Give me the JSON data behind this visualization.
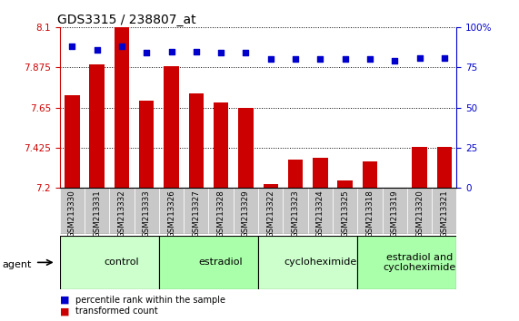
{
  "title": "GDS3315 / 238807_at",
  "samples": [
    "GSM213330",
    "GSM213331",
    "GSM213332",
    "GSM213333",
    "GSM213326",
    "GSM213327",
    "GSM213328",
    "GSM213329",
    "GSM213322",
    "GSM213323",
    "GSM213324",
    "GSM213325",
    "GSM213318",
    "GSM213319",
    "GSM213320",
    "GSM213321"
  ],
  "transformed_counts": [
    7.72,
    7.89,
    8.1,
    7.69,
    7.88,
    7.73,
    7.68,
    7.65,
    7.22,
    7.36,
    7.37,
    7.24,
    7.35,
    7.2,
    7.43,
    7.43
  ],
  "percentile_ranks": [
    88,
    86,
    88,
    84,
    85,
    85,
    84,
    84,
    80,
    80,
    80,
    80,
    80,
    79,
    81,
    81
  ],
  "groups": [
    {
      "label": "control",
      "start": 0,
      "end": 4,
      "color": "#ccffcc"
    },
    {
      "label": "estradiol",
      "start": 4,
      "end": 8,
      "color": "#aaffaa"
    },
    {
      "label": "cycloheximide",
      "start": 8,
      "end": 12,
      "color": "#ccffcc"
    },
    {
      "label": "estradiol and\ncycloheximide",
      "start": 12,
      "end": 16,
      "color": "#aaffaa"
    }
  ],
  "ylim_left": [
    7.2,
    8.1
  ],
  "ylim_right": [
    0,
    100
  ],
  "yticks_left": [
    7.2,
    7.425,
    7.65,
    7.875,
    8.1
  ],
  "ytick_labels_left": [
    "7.2",
    "7.425",
    "7.65",
    "7.875",
    "8.1"
  ],
  "yticks_right": [
    0,
    25,
    50,
    75,
    100
  ],
  "ytick_labels_right": [
    "0",
    "25",
    "50",
    "75",
    "100%"
  ],
  "bar_color": "#cc0000",
  "dot_color": "#0000cc",
  "bar_width": 0.6,
  "legend_bar": "transformed count",
  "legend_dot": "percentile rank within the sample",
  "tick_fontsize": 7.5,
  "group_label_fontsize": 8.0,
  "title_fontsize": 10
}
